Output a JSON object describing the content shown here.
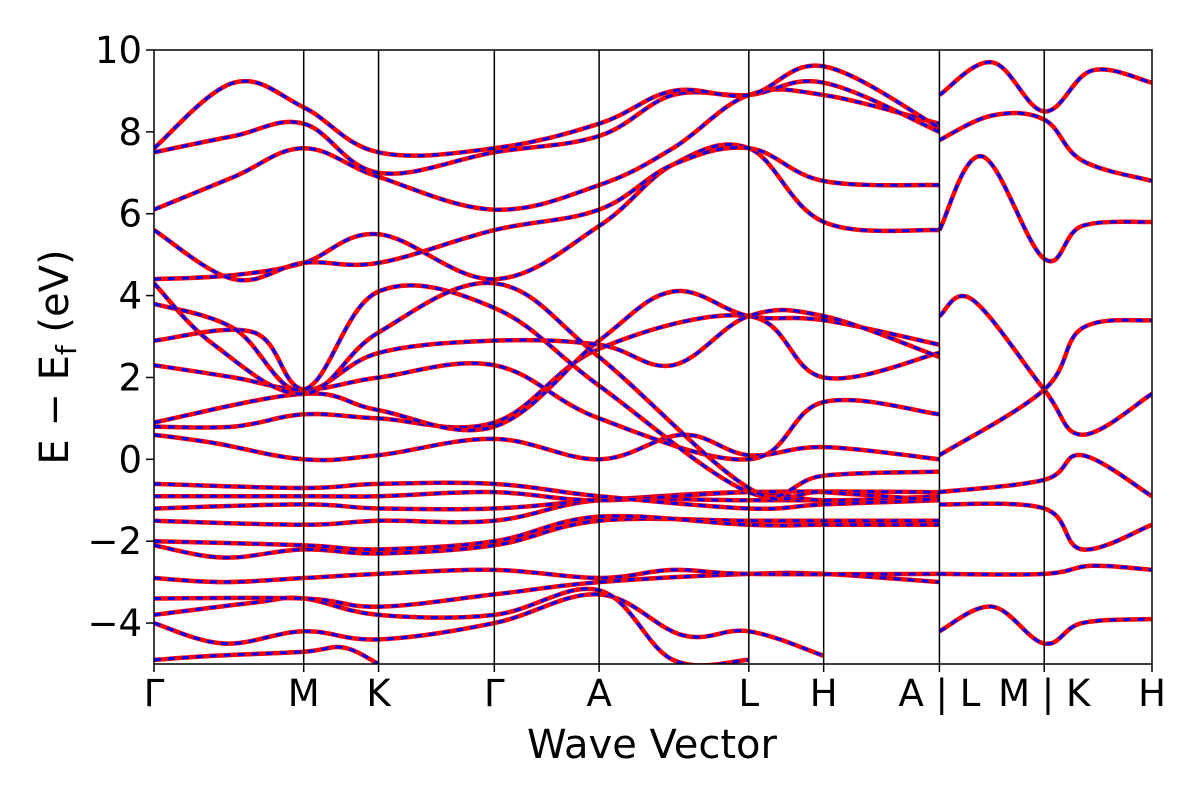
{
  "chart_data": {
    "type": "line",
    "xlabel": "Wave Vector",
    "ylabel_main": "E − E",
    "ylabel_sub": "f",
    "ylabel_unit": " (eV)",
    "ylim": [
      -5,
      10
    ],
    "yticks": [
      {
        "value": -4,
        "label": "−4"
      },
      {
        "value": -2,
        "label": "−2"
      },
      {
        "value": 0,
        "label": "0"
      },
      {
        "value": 2,
        "label": "2"
      },
      {
        "value": 4,
        "label": "4"
      },
      {
        "value": 6,
        "label": "6"
      },
      {
        "value": 8,
        "label": "8"
      },
      {
        "value": 10,
        "label": "10"
      }
    ],
    "xlim": [
      0,
      10
    ],
    "xticks": [
      {
        "value": 0.0,
        "label": "Γ"
      },
      {
        "value": 1.5,
        "label": "M"
      },
      {
        "value": 2.25,
        "label": "K"
      },
      {
        "value": 3.41,
        "label": "Γ"
      },
      {
        "value": 4.46,
        "label": "A"
      },
      {
        "value": 5.96,
        "label": "L"
      },
      {
        "value": 6.71,
        "label": "H"
      },
      {
        "value": 7.87,
        "label": "A | L"
      },
      {
        "value": 8.92,
        "label": "M | K"
      },
      {
        "value": 10.0,
        "label": "H"
      }
    ],
    "grid": false,
    "legend": "none",
    "line_styles": {
      "series_a": {
        "color": "#ff0000",
        "style": "solid"
      },
      "series_b": {
        "color": "#0000ff",
        "style": "dashed"
      }
    },
    "bands": [
      [
        [
          0,
          -4.9
        ],
        [
          0.6,
          -4.8
        ],
        [
          1.5,
          -4.7
        ],
        [
          1.9,
          -4.6
        ],
        [
          2.25,
          -5.0
        ]
      ],
      [
        [
          0,
          -4.0
        ],
        [
          0.7,
          -4.5
        ],
        [
          1.5,
          -4.2
        ],
        [
          2.25,
          -4.4
        ],
        [
          3.41,
          -4.0
        ],
        [
          4.46,
          -3.3
        ],
        [
          5.3,
          -4.3
        ],
        [
          5.96,
          -4.2
        ],
        [
          6.71,
          -4.8
        ]
      ],
      [
        [
          0,
          -3.8
        ],
        [
          1.0,
          -3.5
        ],
        [
          1.5,
          -3.4
        ],
        [
          2.25,
          -3.8
        ],
        [
          3.41,
          -3.8
        ],
        [
          4.46,
          -3.2
        ],
        [
          5.2,
          -4.9
        ],
        [
          5.96,
          -4.9
        ]
      ],
      [
        [
          0,
          -3.4
        ],
        [
          1.5,
          -3.4
        ],
        [
          2.25,
          -3.6
        ],
        [
          3.41,
          -3.3
        ],
        [
          4.46,
          -3.0
        ],
        [
          5.96,
          -2.8
        ],
        [
          6.71,
          -2.8
        ],
        [
          7.87,
          -3.0
        ]
      ],
      [
        [
          0,
          -2.9
        ],
        [
          0.7,
          -3.0
        ],
        [
          1.5,
          -2.9
        ],
        [
          2.25,
          -2.8
        ],
        [
          3.41,
          -2.7
        ],
        [
          4.46,
          -2.9
        ],
        [
          5.2,
          -2.7
        ],
        [
          5.96,
          -2.8
        ],
        [
          7.87,
          -2.8
        ]
      ],
      [
        [
          0,
          -2.1
        ],
        [
          0.7,
          -2.4
        ],
        [
          1.5,
          -2.2
        ],
        [
          2.25,
          -2.3
        ],
        [
          3.41,
          -2.1
        ],
        [
          4.46,
          -1.5
        ],
        [
          5.96,
          -1.5
        ],
        [
          6.71,
          -1.5
        ],
        [
          7.87,
          -1.5
        ]
      ],
      [
        [
          0,
          -2.0
        ],
        [
          1.5,
          -2.1
        ],
        [
          2.25,
          -2.2
        ],
        [
          3.41,
          -2.0
        ],
        [
          4.46,
          -1.4
        ],
        [
          5.96,
          -1.6
        ],
        [
          6.71,
          -1.6
        ],
        [
          7.87,
          -1.6
        ]
      ],
      [
        [
          0,
          -1.5
        ],
        [
          1.5,
          -1.6
        ],
        [
          2.25,
          -1.5
        ],
        [
          3.41,
          -1.5
        ],
        [
          4.46,
          -1.0
        ],
        [
          5.96,
          -1.0
        ],
        [
          7.87,
          -1.0
        ]
      ],
      [
        [
          0,
          -1.2
        ],
        [
          1.5,
          -1.1
        ],
        [
          2.25,
          -1.2
        ],
        [
          3.41,
          -1.2
        ],
        [
          4.46,
          -1.0
        ],
        [
          5.96,
          -0.8
        ],
        [
          6.71,
          -1.0
        ],
        [
          7.87,
          -0.9
        ]
      ],
      [
        [
          0,
          -0.9
        ],
        [
          1.5,
          -0.9
        ],
        [
          2.25,
          -0.9
        ],
        [
          3.41,
          -0.8
        ],
        [
          4.46,
          -1.0
        ],
        [
          5.96,
          -0.8
        ],
        [
          7.87,
          -0.8
        ]
      ],
      [
        [
          0,
          -0.6
        ],
        [
          1.5,
          -0.7
        ],
        [
          2.25,
          -0.6
        ],
        [
          3.41,
          -0.6
        ],
        [
          4.46,
          -0.9
        ],
        [
          5.96,
          -1.2
        ],
        [
          6.71,
          -1.1
        ],
        [
          7.87,
          -1.0
        ]
      ],
      [
        [
          0,
          0.6
        ],
        [
          0.6,
          0.4
        ],
        [
          1.5,
          0.0
        ],
        [
          2.25,
          0.1
        ],
        [
          3.41,
          0.5
        ],
        [
          4.46,
          0.0
        ],
        [
          5.3,
          0.6
        ],
        [
          5.96,
          0.1
        ],
        [
          6.71,
          0.3
        ],
        [
          7.87,
          0.0
        ]
      ],
      [
        [
          0,
          0.8
        ],
        [
          0.8,
          0.8
        ],
        [
          1.5,
          1.1
        ],
        [
          2.25,
          1.0
        ],
        [
          3.41,
          0.9
        ],
        [
          4.46,
          2.7
        ],
        [
          5.96,
          3.5
        ],
        [
          6.71,
          2.0
        ],
        [
          7.87,
          2.6
        ]
      ],
      [
        [
          0,
          0.9
        ],
        [
          1.5,
          1.6
        ],
        [
          2.25,
          1.2
        ],
        [
          3.41,
          0.8
        ],
        [
          4.46,
          2.9
        ],
        [
          5.2,
          4.1
        ],
        [
          5.96,
          3.5
        ],
        [
          6.71,
          3.4
        ],
        [
          7.87,
          2.8
        ]
      ],
      [
        [
          0,
          2.3
        ],
        [
          0.8,
          2.0
        ],
        [
          1.5,
          1.7
        ],
        [
          2.25,
          2.0
        ],
        [
          3.41,
          2.3
        ],
        [
          4.46,
          1.0
        ],
        [
          5.96,
          0.0
        ],
        [
          6.71,
          1.4
        ],
        [
          7.87,
          1.1
        ]
      ],
      [
        [
          0,
          2.9
        ],
        [
          1.0,
          3.1
        ],
        [
          1.5,
          1.7
        ],
        [
          2.25,
          2.6
        ],
        [
          3.41,
          2.9
        ],
        [
          4.46,
          2.8
        ],
        [
          5.2,
          2.3
        ],
        [
          5.96,
          3.5
        ],
        [
          6.71,
          3.5
        ],
        [
          7.87,
          2.5
        ]
      ],
      [
        [
          0,
          3.8
        ],
        [
          0.8,
          3.2
        ],
        [
          1.5,
          1.7
        ],
        [
          2.25,
          4.1
        ],
        [
          3.41,
          3.7
        ],
        [
          4.46,
          1.8
        ],
        [
          5.96,
          -0.8
        ],
        [
          6.71,
          -0.4
        ],
        [
          7.87,
          -0.3
        ]
      ],
      [
        [
          0,
          4.3
        ],
        [
          0.6,
          2.8
        ],
        [
          1.5,
          1.6
        ],
        [
          2.25,
          3.1
        ],
        [
          3.41,
          4.3
        ],
        [
          4.46,
          2.5
        ],
        [
          5.96,
          -0.7
        ],
        [
          6.71,
          -0.8
        ],
        [
          7.87,
          -1.0
        ]
      ],
      [
        [
          0,
          4.4
        ],
        [
          0.8,
          4.5
        ],
        [
          1.5,
          4.8
        ],
        [
          2.25,
          5.5
        ],
        [
          3.41,
          4.4
        ],
        [
          4.46,
          5.7
        ],
        [
          5.2,
          7.2
        ],
        [
          5.96,
          7.6
        ],
        [
          6.71,
          5.8
        ],
        [
          7.87,
          5.6
        ]
      ],
      [
        [
          0,
          5.6
        ],
        [
          0.8,
          4.4
        ],
        [
          1.5,
          4.8
        ],
        [
          2.25,
          4.8
        ],
        [
          3.41,
          5.6
        ],
        [
          4.46,
          6.1
        ],
        [
          5.2,
          7.2
        ],
        [
          5.96,
          7.6
        ],
        [
          6.71,
          6.8
        ],
        [
          7.87,
          6.7
        ]
      ],
      [
        [
          0,
          6.1
        ],
        [
          0.8,
          6.9
        ],
        [
          1.5,
          7.6
        ],
        [
          2.25,
          6.9
        ],
        [
          3.41,
          6.1
        ],
        [
          4.46,
          6.7
        ],
        [
          5.2,
          7.6
        ],
        [
          5.96,
          8.9
        ],
        [
          6.71,
          8.9
        ],
        [
          7.87,
          8.2
        ]
      ],
      [
        [
          0,
          7.5
        ],
        [
          0.8,
          7.9
        ],
        [
          1.5,
          8.2
        ],
        [
          2.25,
          7.0
        ],
        [
          3.41,
          7.5
        ],
        [
          4.46,
          7.9
        ],
        [
          5.2,
          8.9
        ],
        [
          5.96,
          8.9
        ],
        [
          6.71,
          9.2
        ],
        [
          7.87,
          8.0
        ]
      ],
      [
        [
          0,
          7.6
        ],
        [
          0.8,
          9.2
        ],
        [
          1.5,
          8.6
        ],
        [
          2.25,
          7.5
        ],
        [
          3.41,
          7.6
        ],
        [
          4.46,
          8.2
        ],
        [
          5.2,
          9.0
        ],
        [
          5.96,
          8.9
        ],
        [
          6.71,
          9.6
        ],
        [
          7.87,
          8.1
        ]
      ],
      [
        [
          7.87,
          3.5
        ],
        [
          8.2,
          3.9
        ],
        [
          8.92,
          1.7
        ],
        [
          9.3,
          0.6
        ],
        [
          10.0,
          1.6
        ]
      ],
      [
        [
          7.87,
          0.1
        ],
        [
          8.92,
          1.7
        ],
        [
          9.3,
          3.2
        ],
        [
          10.0,
          3.4
        ]
      ],
      [
        [
          7.87,
          5.6
        ],
        [
          8.3,
          7.4
        ],
        [
          8.92,
          4.9
        ],
        [
          9.3,
          5.7
        ],
        [
          10.0,
          5.8
        ]
      ],
      [
        [
          7.87,
          7.8
        ],
        [
          8.4,
          8.4
        ],
        [
          8.92,
          8.3
        ],
        [
          9.3,
          7.3
        ],
        [
          10.0,
          6.8
        ]
      ],
      [
        [
          7.87,
          8.9
        ],
        [
          8.4,
          9.7
        ],
        [
          8.92,
          8.5
        ],
        [
          9.4,
          9.5
        ],
        [
          10.0,
          9.2
        ]
      ],
      [
        [
          7.87,
          -4.2
        ],
        [
          8.4,
          -3.6
        ],
        [
          8.92,
          -4.5
        ],
        [
          9.3,
          -4.0
        ],
        [
          10.0,
          -3.9
        ]
      ],
      [
        [
          7.87,
          -2.8
        ],
        [
          8.92,
          -2.8
        ],
        [
          9.4,
          -2.6
        ],
        [
          10.0,
          -2.7
        ]
      ],
      [
        [
          7.87,
          -1.1
        ],
        [
          8.92,
          -1.2
        ],
        [
          9.3,
          -2.2
        ],
        [
          10.0,
          -1.6
        ]
      ],
      [
        [
          7.87,
          -0.8
        ],
        [
          8.92,
          -0.5
        ],
        [
          9.3,
          0.1
        ],
        [
          10.0,
          -0.9
        ]
      ]
    ]
  }
}
